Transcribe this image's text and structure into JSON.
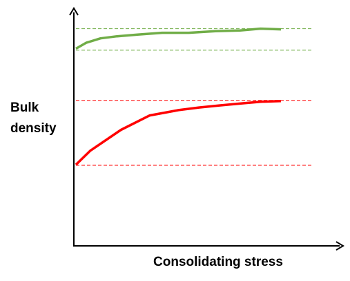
{
  "chart_data": {
    "type": "line",
    "title": "",
    "xlabel": "Consolidating stress",
    "ylabel": "Bulk\ndensity",
    "xlim": [
      0,
      100
    ],
    "ylim": [
      0,
      100
    ],
    "grid": false,
    "legend": "none",
    "series": [
      {
        "color": "#70ad47",
        "x": [
          0,
          5,
          12,
          20,
          30,
          42,
          55,
          68,
          80,
          90,
          100
        ],
        "values": [
          85.0,
          87.5,
          89.4,
          90.3,
          91.0,
          91.8,
          91.8,
          92.5,
          92.8,
          93.6,
          93.3
        ]
      },
      {
        "color": "#ff0000",
        "x": [
          0,
          7,
          22,
          36,
          50,
          60,
          70,
          80,
          90,
          100
        ],
        "values": [
          35.0,
          41.0,
          50.0,
          56.2,
          58.5,
          59.6,
          60.5,
          61.3,
          62.1,
          62.4
        ]
      }
    ],
    "reference_lines": [
      {
        "y": 93.6,
        "color": "#70ad47"
      },
      {
        "y": 84.3,
        "color": "#70ad47"
      },
      {
        "y": 62.7,
        "color": "#ff0000"
      },
      {
        "y": 34.7,
        "color": "#ff0000"
      }
    ]
  }
}
